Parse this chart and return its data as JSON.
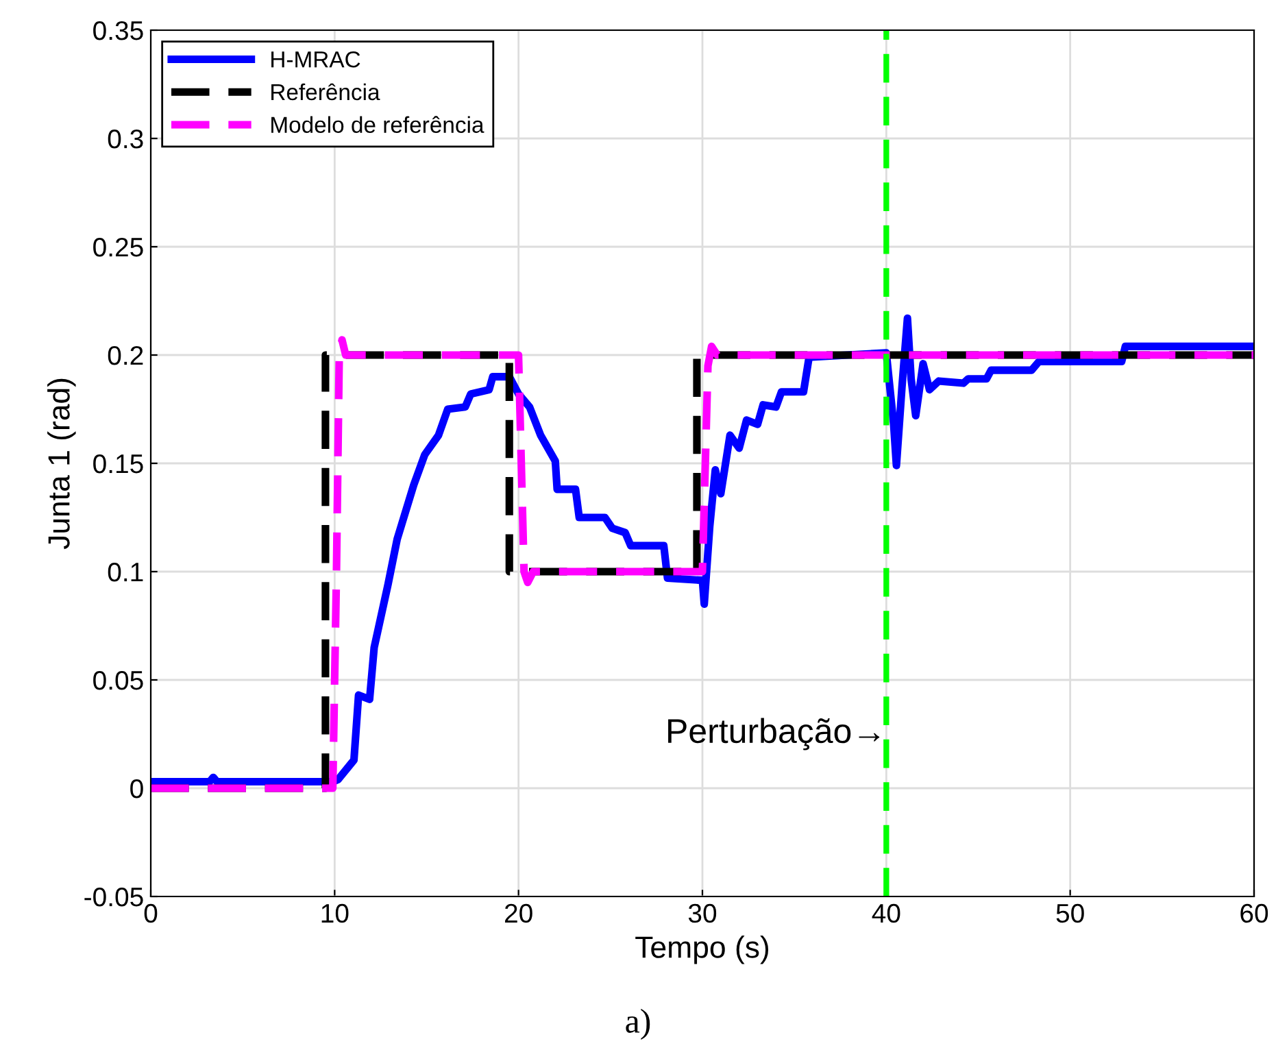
{
  "chart_data": {
    "type": "line",
    "xlabel": "Tempo (s)",
    "ylabel": "Junta 1 (rad)",
    "xlim": [
      0,
      60
    ],
    "ylim": [
      -0.05,
      0.35
    ],
    "xticks": [
      0,
      10,
      20,
      30,
      40,
      50,
      60
    ],
    "yticks": [
      {
        "value": -0.05,
        "label": "-0.05"
      },
      0,
      0.05,
      0.1,
      0.15,
      0.2,
      0.25,
      0.3,
      0.35
    ],
    "grid": true,
    "legend": "top left",
    "marker": "none",
    "series": [
      {
        "name": "H-MRAC",
        "color": "#0000ff",
        "line_style": "solid",
        "x": [
          0,
          3.2,
          3.4,
          3.6,
          9.9,
          10.19,
          11.05,
          11.3,
          11.9,
          12.15,
          12.9,
          13.4,
          14.3,
          14.9,
          15.65,
          16.15,
          17.1,
          17.4,
          18.4,
          18.6,
          19.5,
          20.0,
          20.6,
          21.2,
          22.0,
          22.1,
          23.1,
          23.3,
          24.7,
          25.1,
          25.8,
          26.1,
          27.9,
          28.1,
          30.0,
          30.1,
          30.4,
          30.7,
          31.0,
          31.5,
          32.0,
          32.4,
          33.0,
          33.3,
          34.0,
          34.3,
          35.5,
          35.8,
          40.0,
          40.4,
          40.55,
          40.85,
          41.15,
          41.35,
          41.6,
          42.0,
          42.35,
          42.85,
          44.2,
          44.45,
          45.45,
          45.7,
          47.9,
          48.3,
          52.8,
          53.0,
          60
        ],
        "values": [
          0.003,
          0.003,
          0.005,
          0.003,
          0.003,
          0.004,
          0.013,
          0.043,
          0.041,
          0.065,
          0.094,
          0.115,
          0.14,
          0.154,
          0.163,
          0.175,
          0.176,
          0.182,
          0.184,
          0.19,
          0.19,
          0.182,
          0.176,
          0.163,
          0.151,
          0.138,
          0.138,
          0.125,
          0.125,
          0.12,
          0.118,
          0.112,
          0.112,
          0.097,
          0.096,
          0.085,
          0.121,
          0.147,
          0.136,
          0.163,
          0.157,
          0.17,
          0.168,
          0.177,
          0.176,
          0.183,
          0.183,
          0.199,
          0.201,
          0.168,
          0.149,
          0.185,
          0.217,
          0.189,
          0.172,
          0.196,
          0.184,
          0.188,
          0.187,
          0.189,
          0.189,
          0.193,
          0.193,
          0.197,
          0.197,
          0.204,
          0.204
        ]
      },
      {
        "name": "Referência",
        "color": "#000000",
        "line_style": "dashed",
        "x": [
          0,
          9.5,
          9.5,
          19.5,
          19.5,
          29.7,
          29.7,
          60
        ],
        "values": [
          0,
          0,
          0.2,
          0.2,
          0.1,
          0.1,
          0.2,
          0.2
        ]
      },
      {
        "name": "Modelo de referência",
        "color": "#ff00ff",
        "line_style": "dashed",
        "x": [
          0,
          9.9,
          10.1,
          10.25,
          10.4,
          10.6,
          20.0,
          20.3,
          20.5,
          20.8,
          30.0,
          30.3,
          30.5,
          30.8,
          60
        ],
        "values": [
          0,
          0,
          0.1,
          0.2,
          0.207,
          0.2,
          0.2,
          0.1,
          0.095,
          0.1,
          0.1,
          0.195,
          0.204,
          0.2,
          0.2
        ]
      }
    ],
    "ref_lines": [
      {
        "axis": "x",
        "value": 40,
        "color": "#00ff00",
        "line_style": "dashed"
      }
    ],
    "annotations": [
      {
        "text": "Perturbação→",
        "x": 40,
        "y": 0.025
      },
      "a)"
    ]
  }
}
